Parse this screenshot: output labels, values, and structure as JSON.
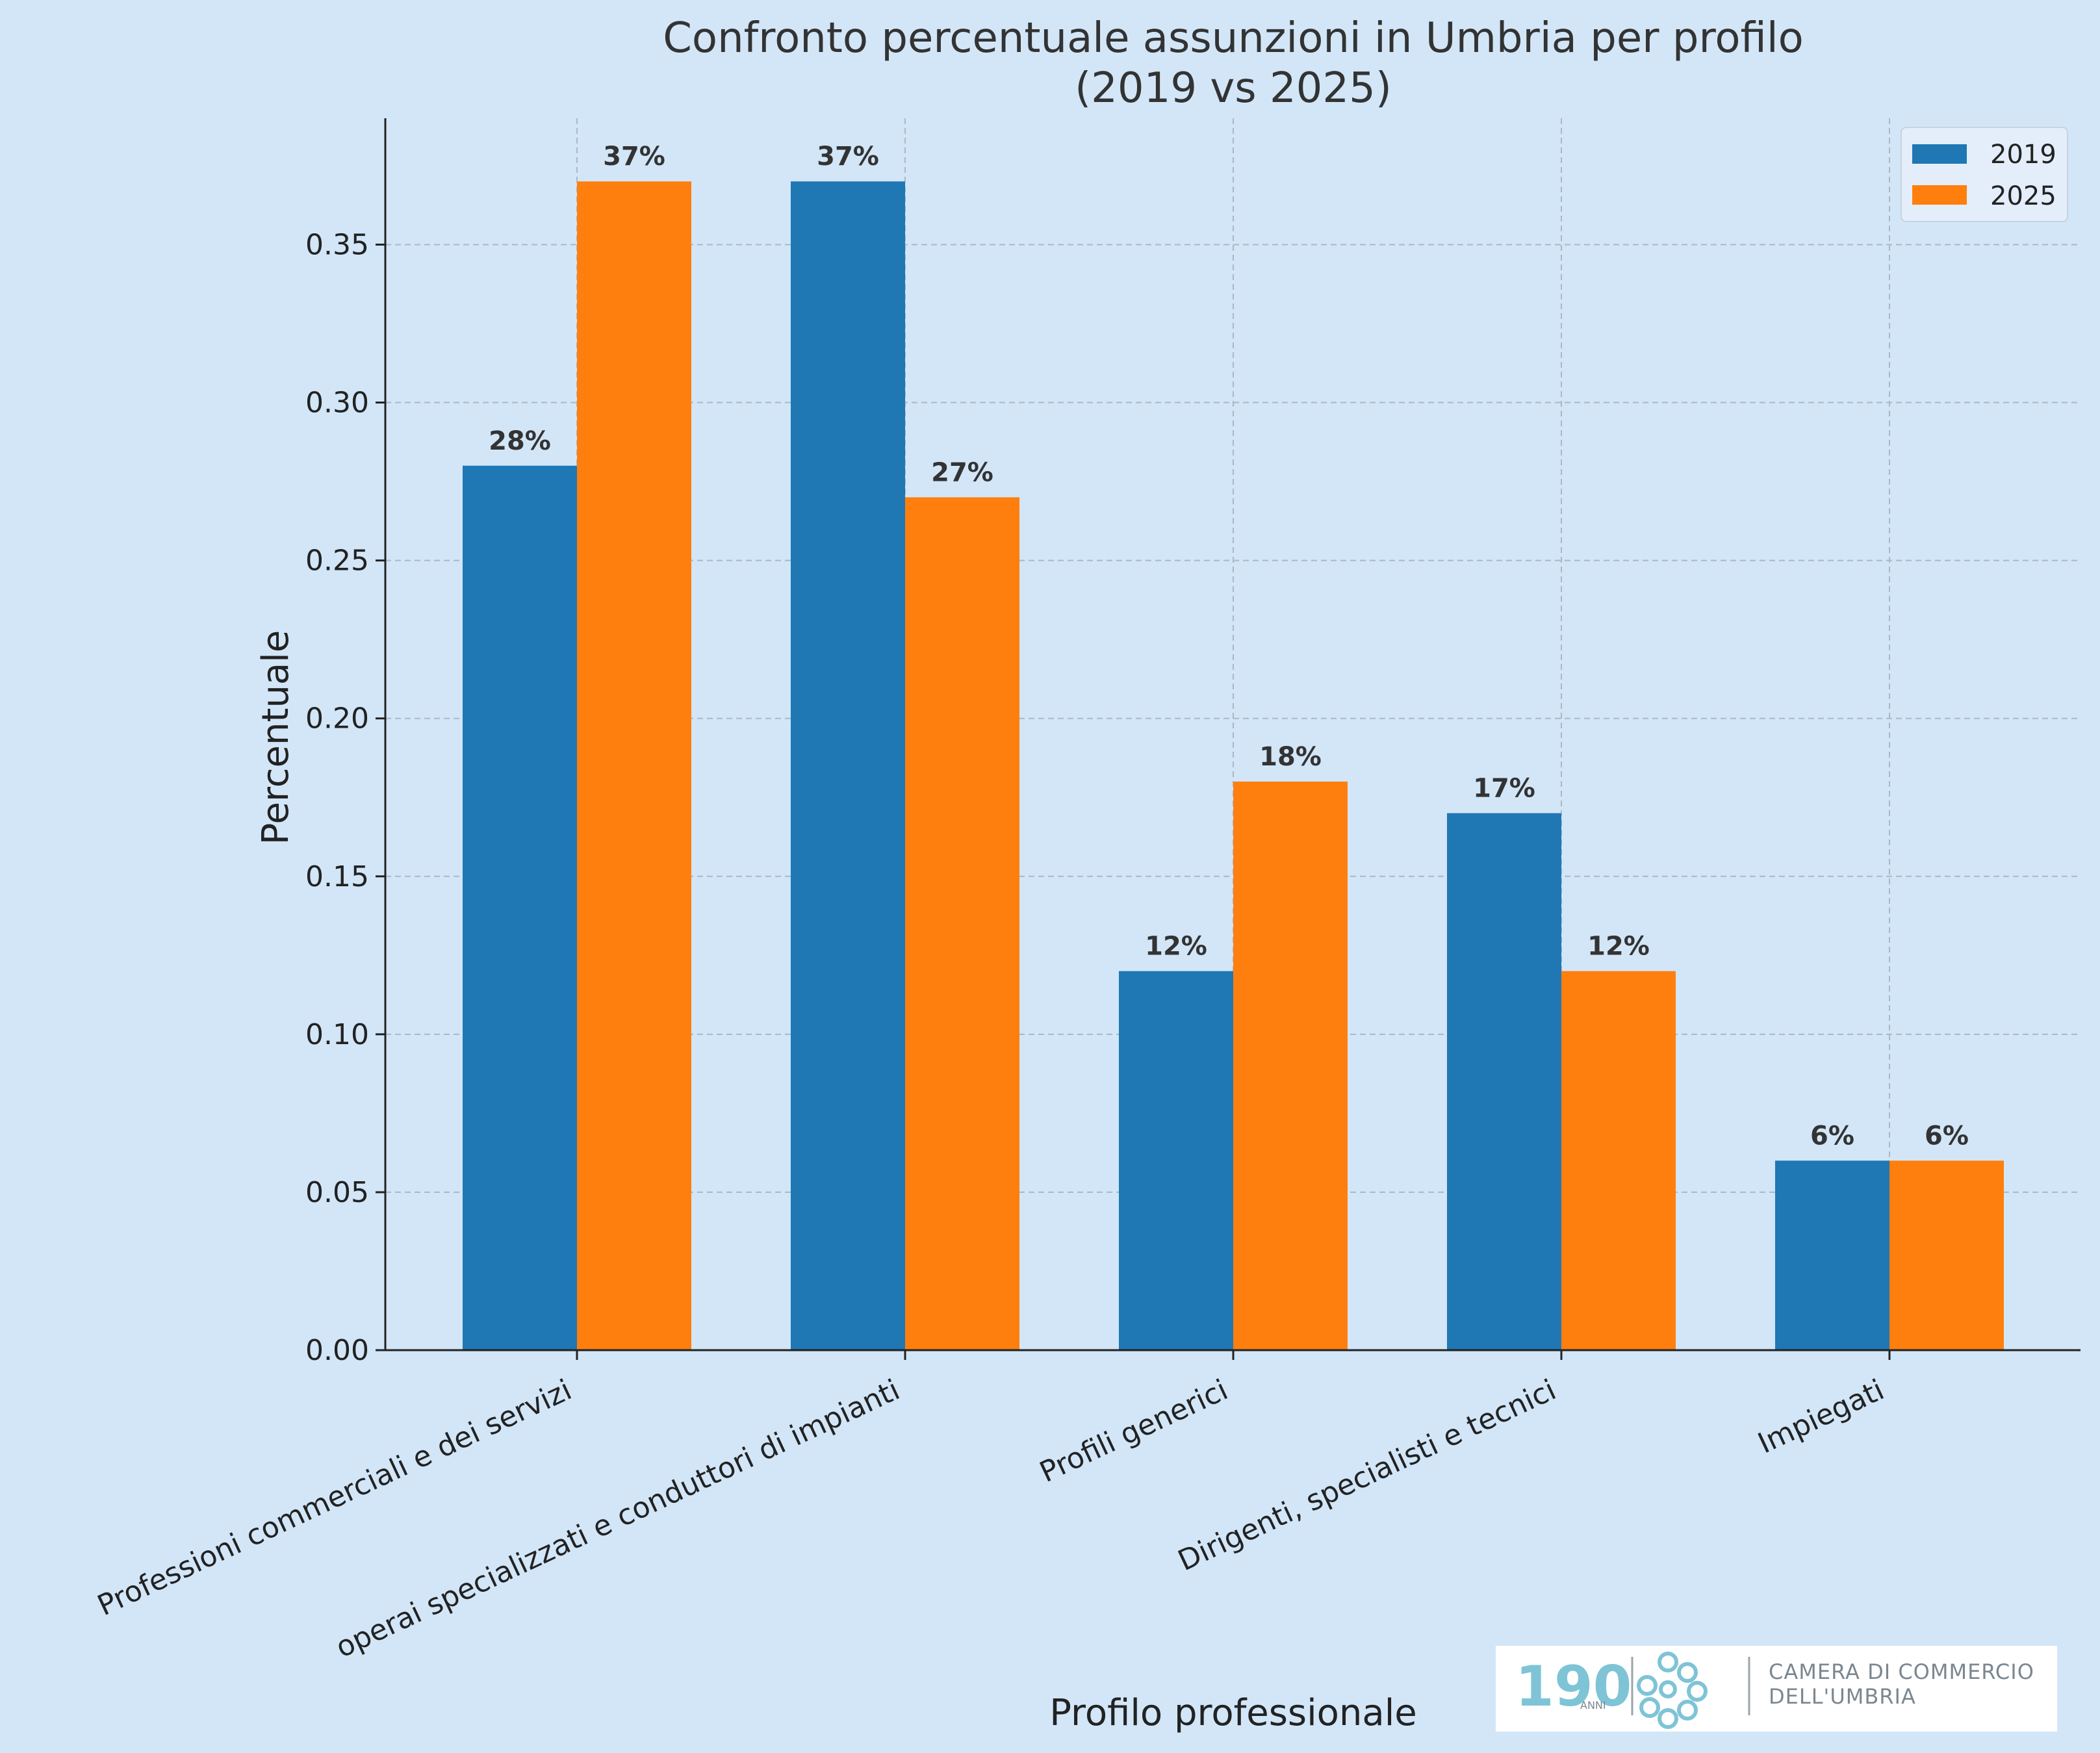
{
  "chart_data": {
    "type": "bar",
    "title": "Confronto percentuale assunzioni in Umbria per profilo",
    "subtitle": "(2019 vs 2025)",
    "xlabel": "Profilo professionale",
    "ylabel": "Percentuale",
    "ylim": [
      0,
      0.39
    ],
    "yticks": [
      "0.00",
      "0.05",
      "0.10",
      "0.15",
      "0.20",
      "0.25",
      "0.30",
      "0.35"
    ],
    "categories": [
      "Professioni commerciali e dei servizi",
      "operai specializzati e conduttori di impianti",
      "Profili generici",
      "Dirigenti, specialisti e tecnici",
      "Impiegati"
    ],
    "series": [
      {
        "name": "2019",
        "color": "#1f77b4",
        "values": [
          0.28,
          0.37,
          0.12,
          0.17,
          0.06
        ],
        "labels": [
          "28%",
          "37%",
          "12%",
          "17%",
          "6%"
        ]
      },
      {
        "name": "2025",
        "color": "#ff7f0e",
        "values": [
          0.37,
          0.27,
          0.18,
          0.12,
          0.06
        ],
        "labels": [
          "37%",
          "27%",
          "18%",
          "12%",
          "6%"
        ]
      }
    ],
    "grid": true,
    "legend_position": "top-right"
  },
  "logo": {
    "number": "190",
    "anni": "ANNI",
    "line1": "CAMERA DI COMMERCIO",
    "line2": "DELL'UMBRIA"
  }
}
